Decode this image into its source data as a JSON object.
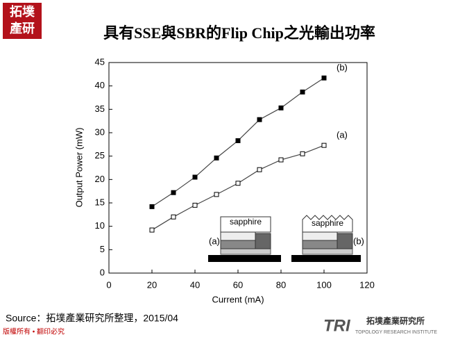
{
  "header": {
    "logo": [
      "拓墣",
      "產研"
    ],
    "title": "具有SSE與SBR的Flip Chip之光輸出功率"
  },
  "chart_data": {
    "type": "line",
    "x_label": "Current (mA)",
    "y_label": "Output Power (mW)",
    "x": [
      20,
      30,
      40,
      50,
      60,
      70,
      80,
      90,
      100
    ],
    "series": [
      {
        "name": "(a)",
        "color": "#444444",
        "marker": "hollow",
        "values": [
          9.2,
          12.0,
          14.5,
          16.8,
          19.2,
          22.1,
          24.2,
          25.5,
          27.3
        ]
      },
      {
        "name": "(b)",
        "color": "#444444",
        "marker": "filled",
        "values": [
          14.2,
          17.2,
          20.5,
          24.6,
          28.3,
          32.8,
          35.3,
          38.7,
          41.7
        ]
      }
    ],
    "xlim": [
      0,
      120
    ],
    "xticks": [
      0,
      20,
      40,
      60,
      80,
      100,
      120
    ],
    "ylim": [
      0,
      45
    ],
    "yticks": [
      0,
      5,
      10,
      15,
      20,
      25,
      30,
      35,
      40,
      45
    ]
  },
  "inset": {
    "left": {
      "layer": "sapphire",
      "label": "(a)"
    },
    "right": {
      "layer": "sapphire",
      "label": "(b)"
    }
  },
  "footer": {
    "source": "Source：拓墣產業研究所整理，2015/04",
    "copyright": "版權所有 • 翻印必究",
    "brand": "TRI",
    "brand_name": "拓墣產業研究所",
    "brand_en": "TOPOLOGY RESEARCH INSTITUTE"
  }
}
